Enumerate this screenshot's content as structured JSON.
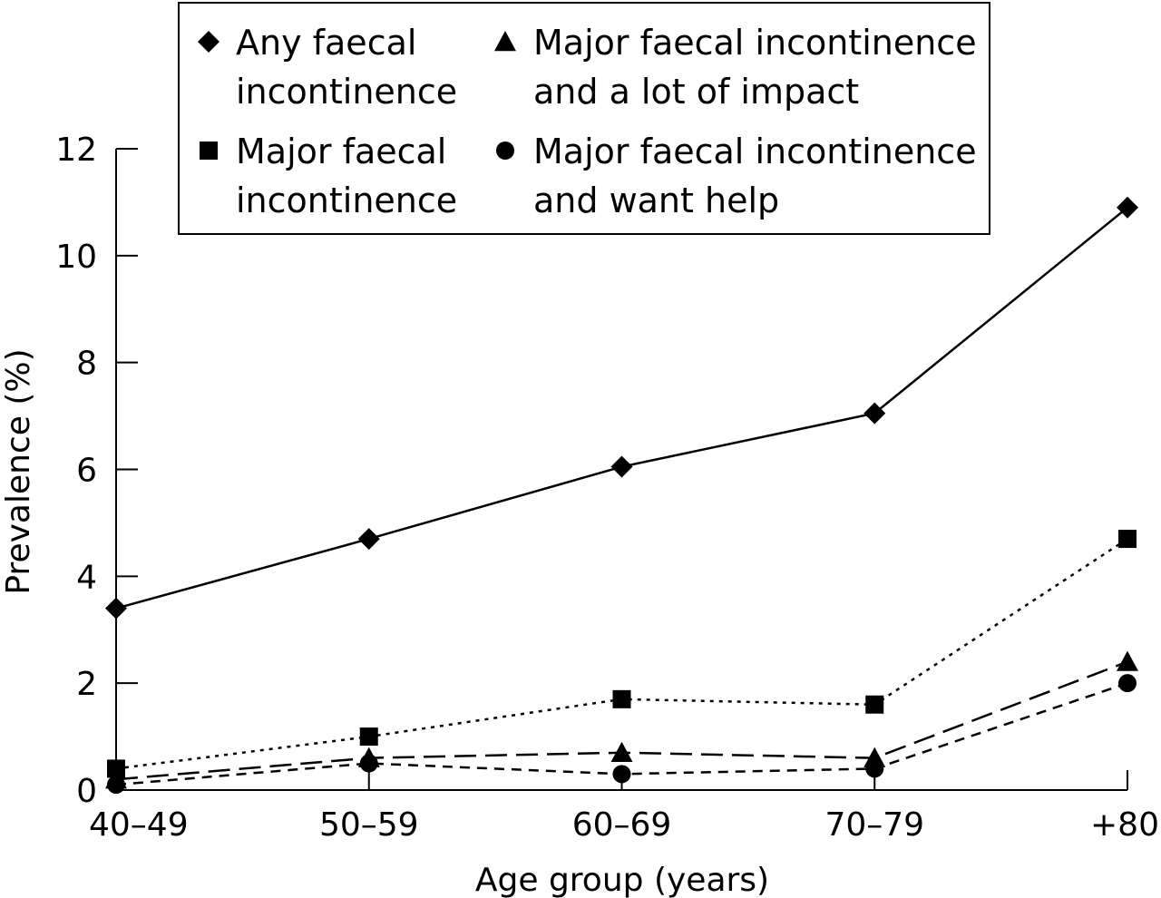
{
  "chart_data": {
    "type": "line",
    "title": "",
    "xlabel": "Age group (years)",
    "ylabel": "Prevalence (%)",
    "categories": [
      "40–49",
      "50–59",
      "60–69",
      "70–79",
      "+80"
    ],
    "yticks": [
      "0",
      "2",
      "4",
      "6",
      "8",
      "10",
      "12"
    ],
    "ylim": [
      0,
      12
    ],
    "grid": false,
    "legend_position": "top",
    "series": [
      {
        "name_lines": [
          "Any faecal",
          "incontinence"
        ],
        "marker": "diamond",
        "dash": "solid",
        "values": [
          3.4,
          4.7,
          6.05,
          7.05,
          10.9
        ]
      },
      {
        "name_lines": [
          "Major faecal",
          "incontinence"
        ],
        "marker": "square",
        "dash": "dotted",
        "values": [
          0.4,
          1.0,
          1.7,
          1.6,
          4.7
        ]
      },
      {
        "name_lines": [
          "Major faecal incontinence",
          "and a lot of impact"
        ],
        "marker": "triangle",
        "dash": "long-dash",
        "values": [
          0.2,
          0.6,
          0.7,
          0.6,
          2.4
        ]
      },
      {
        "name_lines": [
          "Major faecal incontinence",
          "and want help"
        ],
        "marker": "circle",
        "dash": "short-dash",
        "values": [
          0.1,
          0.5,
          0.3,
          0.4,
          2.0
        ]
      }
    ]
  }
}
